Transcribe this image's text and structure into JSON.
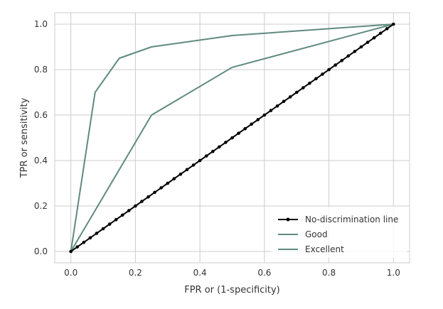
{
  "chart_data": {
    "type": "line",
    "xlabel": "FPR or (1-specificity)",
    "ylabel": "TPR or sensitivity",
    "xlim": [
      -0.05,
      1.05
    ],
    "ylim": [
      -0.05,
      1.05
    ],
    "xticks": [
      0.0,
      0.2,
      0.4,
      0.6,
      0.8,
      1.0
    ],
    "yticks": [
      0.0,
      0.2,
      0.4,
      0.6,
      0.8,
      1.0
    ],
    "xtick_labels": [
      "0.0",
      "0.2",
      "0.4",
      "0.6",
      "0.8",
      "1.0"
    ],
    "ytick_labels": [
      "0.0",
      "0.2",
      "0.4",
      "0.6",
      "0.8",
      "1.0"
    ],
    "grid": true,
    "legend_position": "lower-right",
    "series": [
      {
        "name": "No-discrimination line",
        "color": "#000000",
        "marker": "dot",
        "x": [
          0.0,
          0.02,
          0.04,
          0.06,
          0.08,
          0.1,
          0.12,
          0.14,
          0.16,
          0.18,
          0.2,
          0.22,
          0.24,
          0.26,
          0.28,
          0.3,
          0.32,
          0.34,
          0.36,
          0.38,
          0.4,
          0.42,
          0.44,
          0.46,
          0.48,
          0.5,
          0.52,
          0.54,
          0.56,
          0.58,
          0.6,
          0.62,
          0.64,
          0.66,
          0.68,
          0.7,
          0.72,
          0.74,
          0.76,
          0.78,
          0.8,
          0.82,
          0.84,
          0.86,
          0.88,
          0.9,
          0.92,
          0.94,
          0.96,
          0.98,
          1.0
        ],
        "y": [
          0.0,
          0.02,
          0.04,
          0.06,
          0.08,
          0.1,
          0.12,
          0.14,
          0.16,
          0.18,
          0.2,
          0.22,
          0.24,
          0.26,
          0.28,
          0.3,
          0.32,
          0.34,
          0.36,
          0.38,
          0.4,
          0.42,
          0.44,
          0.46,
          0.48,
          0.5,
          0.52,
          0.54,
          0.56,
          0.58,
          0.6,
          0.62,
          0.64,
          0.66,
          0.68,
          0.7,
          0.72,
          0.74,
          0.76,
          0.78,
          0.8,
          0.82,
          0.84,
          0.86,
          0.88,
          0.9,
          0.92,
          0.94,
          0.96,
          0.98,
          1.0
        ]
      },
      {
        "name": "Good",
        "color": "#5f8a80",
        "marker": "none",
        "x": [
          0.0,
          0.25,
          0.5,
          1.0
        ],
        "y": [
          0.0,
          0.6,
          0.81,
          1.0
        ]
      },
      {
        "name": "Excellent",
        "color": "#5f8a80",
        "marker": "none",
        "x": [
          0.0,
          0.075,
          0.15,
          0.25,
          0.5,
          1.0
        ],
        "y": [
          0.0,
          0.7,
          0.85,
          0.9,
          0.95,
          1.0
        ]
      }
    ]
  }
}
